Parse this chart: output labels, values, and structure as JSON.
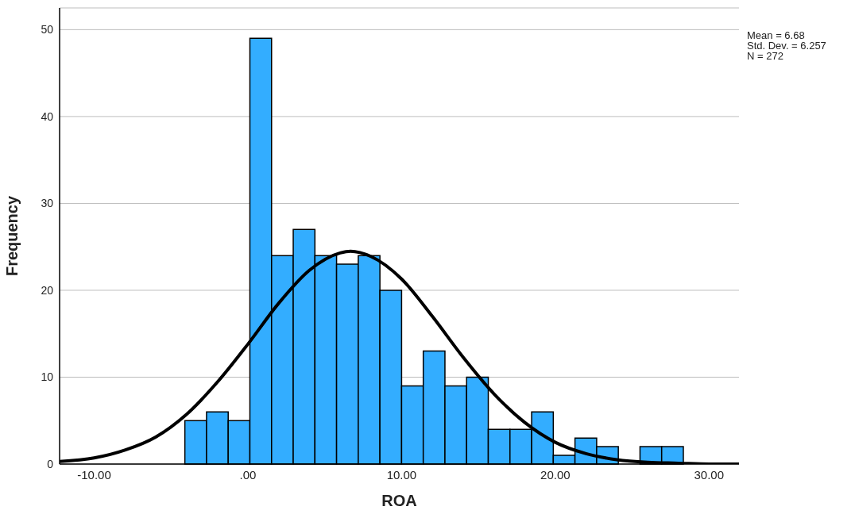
{
  "chart_data": {
    "type": "histogram",
    "xlabel": "ROA",
    "ylabel": "Frequency",
    "bins": [
      -4.1,
      -2.69,
      -1.28,
      0.13,
      1.54,
      2.95,
      4.36,
      5.77,
      7.18,
      8.59,
      10.0,
      11.41,
      12.82,
      14.23,
      15.64,
      17.05,
      18.46,
      19.87,
      21.28,
      22.69,
      24.1,
      25.51,
      26.92,
      28.33
    ],
    "values": [
      5,
      6,
      5,
      49,
      24,
      27,
      24,
      23,
      24,
      20,
      9,
      13,
      9,
      10,
      4,
      4,
      6,
      1,
      3,
      2,
      0,
      2,
      2
    ],
    "color": "#33adff",
    "series": [
      {
        "type": "line",
        "color": "#000000",
        "x": [
          -12.25,
          -10,
          -8,
          -6,
          -4,
          -2,
          0,
          2,
          4,
          6,
          6.68,
          8,
          10,
          12,
          14,
          16,
          18,
          20,
          22,
          24,
          26,
          28,
          30,
          31.95
        ],
        "values": [
          0.3,
          0.7,
          1.6,
          3.1,
          5.7,
          9.4,
          13.8,
          18.5,
          22.3,
          24.3,
          24.5,
          23.9,
          21.3,
          17.0,
          12.3,
          8.1,
          4.8,
          2.5,
          1.2,
          0.5,
          0.2,
          0.1,
          0.0,
          0.0
        ]
      }
    ],
    "xlim": [
      -12.25,
      31.95
    ],
    "xticks": [
      {
        "value": -10,
        "label": "-10.00"
      },
      {
        "value": 0,
        "label": ".00"
      },
      {
        "value": 10,
        "label": "10.00"
      },
      {
        "value": 20,
        "label": "20.00"
      },
      {
        "value": 30,
        "label": "30.00"
      }
    ],
    "ylim": [
      0,
      52.5
    ],
    "yticks": [
      0,
      10,
      20,
      30,
      40,
      50
    ],
    "grid": "y",
    "marker": "none",
    "line_style": "solid",
    "annotations": [
      "Mean = 6.68",
      "Std. Dev. = 6.257",
      "N = 272"
    ]
  }
}
